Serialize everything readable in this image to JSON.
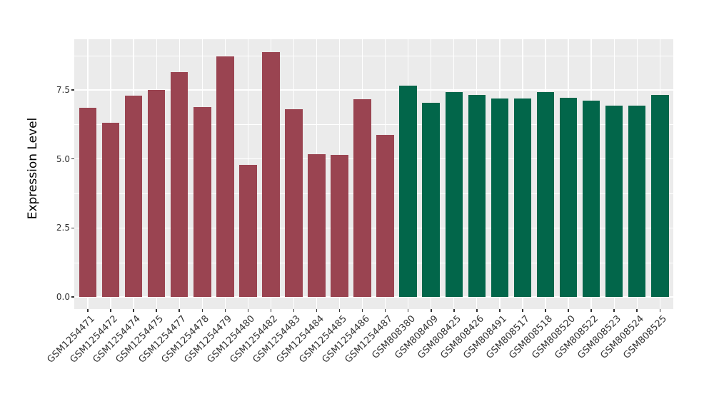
{
  "chart": {
    "ylabel": "Expression Level"
  },
  "chart_data": {
    "type": "bar",
    "title": "",
    "xlabel": "",
    "ylabel": "Expression Level",
    "categories": [
      "GSM1254471",
      "GSM1254472",
      "GSM1254474",
      "GSM1254475",
      "GSM1254477",
      "GSM1254478",
      "GSM1254479",
      "GSM1254480",
      "GSM1254482",
      "GSM1254483",
      "GSM1254484",
      "GSM1254485",
      "GSM1254486",
      "GSM1254487",
      "GSM808380",
      "GSM808409",
      "GSM808425",
      "GSM808426",
      "GSM808491",
      "GSM808517",
      "GSM808518",
      "GSM808520",
      "GSM808522",
      "GSM808523",
      "GSM808524",
      "GSM808525"
    ],
    "values": [
      6.85,
      6.3,
      7.28,
      7.5,
      8.15,
      6.88,
      8.72,
      4.78,
      8.87,
      6.81,
      5.17,
      5.15,
      7.16,
      5.86,
      7.66,
      7.03,
      7.43,
      7.31,
      7.18,
      7.18,
      7.43,
      7.21,
      7.12,
      6.94,
      6.94,
      7.31
    ],
    "group_index": [
      0,
      0,
      0,
      0,
      0,
      0,
      0,
      0,
      0,
      0,
      0,
      0,
      0,
      0,
      1,
      1,
      1,
      1,
      1,
      1,
      1,
      1,
      1,
      1,
      1,
      1
    ],
    "group_colors": [
      "#9a4451",
      "#02664a"
    ],
    "y_major_ticks": [
      0.0,
      2.5,
      5.0,
      7.5
    ],
    "y_tick_labels": [
      "0.0",
      "2.5",
      "5.0",
      "7.5"
    ],
    "y_minor_ticks": [
      1.25,
      3.75,
      6.25,
      8.75
    ],
    "ylim": [
      -0.44,
      9.33
    ],
    "grid": true,
    "legend": "none",
    "panel_bg": "#ebebeb",
    "grid_color": "#ffffff"
  }
}
